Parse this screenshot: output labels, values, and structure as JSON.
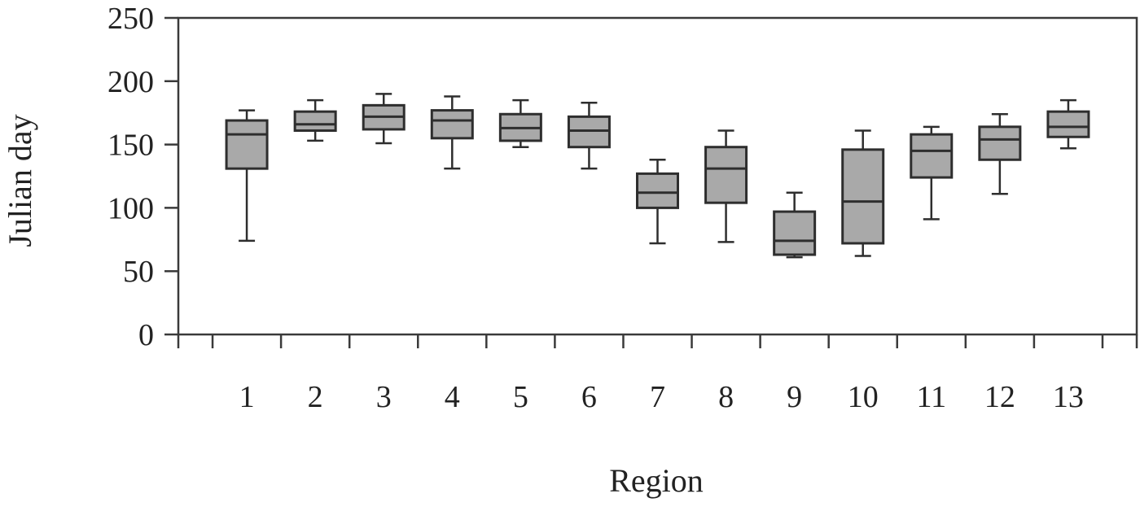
{
  "chart_data": {
    "type": "box",
    "title": "",
    "xlabel": "Region",
    "ylabel": "Julian day",
    "ylim": [
      0,
      250
    ],
    "yticks": [
      0,
      50,
      100,
      150,
      200,
      250
    ],
    "grid": false,
    "box_fill": "#a9a9a9",
    "line_color": "#2e2e2e",
    "categories": [
      "1",
      "2",
      "3",
      "4",
      "5",
      "6",
      "7",
      "8",
      "9",
      "10",
      "11",
      "12",
      "13"
    ],
    "boxes": [
      {
        "category": "1",
        "min": 74,
        "q1": 131,
        "median": 158,
        "q3": 169,
        "max": 177
      },
      {
        "category": "2",
        "min": 153,
        "q1": 161,
        "median": 166,
        "q3": 176,
        "max": 185
      },
      {
        "category": "3",
        "min": 151,
        "q1": 162,
        "median": 172,
        "q3": 181,
        "max": 190
      },
      {
        "category": "4",
        "min": 131,
        "q1": 155,
        "median": 169,
        "q3": 177,
        "max": 188
      },
      {
        "category": "5",
        "min": 148,
        "q1": 153,
        "median": 163,
        "q3": 174,
        "max": 185
      },
      {
        "category": "6",
        "min": 131,
        "q1": 148,
        "median": 161,
        "q3": 172,
        "max": 183
      },
      {
        "category": "7",
        "min": 72,
        "q1": 100,
        "median": 112,
        "q3": 127,
        "max": 138
      },
      {
        "category": "8",
        "min": 73,
        "q1": 104,
        "median": 131,
        "q3": 148,
        "max": 161
      },
      {
        "category": "9",
        "min": 61,
        "q1": 63,
        "median": 74,
        "q3": 97,
        "max": 112
      },
      {
        "category": "10",
        "min": 62,
        "q1": 72,
        "median": 105,
        "q3": 146,
        "max": 161
      },
      {
        "category": "11",
        "min": 91,
        "q1": 124,
        "median": 145,
        "q3": 158,
        "max": 164
      },
      {
        "category": "12",
        "min": 111,
        "q1": 138,
        "median": 154,
        "q3": 164,
        "max": 174
      },
      {
        "category": "13",
        "min": 147,
        "q1": 156,
        "median": 164,
        "q3": 176,
        "max": 185
      }
    ]
  }
}
